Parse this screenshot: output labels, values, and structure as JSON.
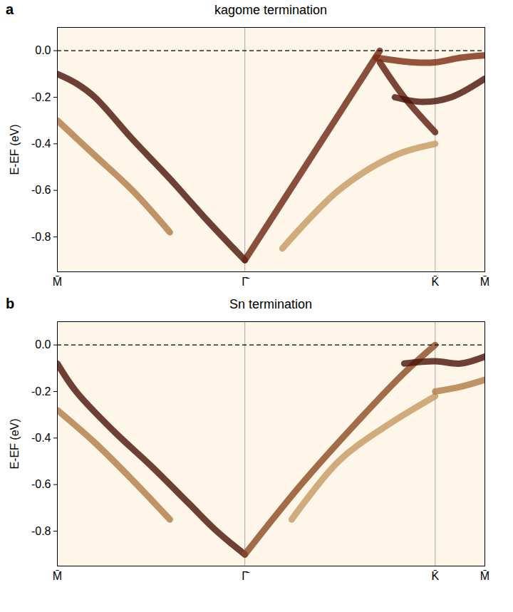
{
  "chart_data": [
    {
      "panel": "a",
      "type": "line",
      "title": "kagome termination",
      "y_label": "E-EF (eV)",
      "xlim": [
        0,
        2.28
      ],
      "xticks": [
        {
          "value": 0,
          "label": "M̄"
        },
        {
          "value": 1,
          "label": "Γ̄"
        },
        {
          "value": 2.015,
          "label": "K̄"
        },
        {
          "value": 2.28,
          "label": "M̄"
        }
      ],
      "ylim": [
        -0.95,
        0.1
      ],
      "yticks": [
        {
          "value": 0,
          "label": "0.0"
        },
        {
          "value": -0.2,
          "label": "-0.2"
        },
        {
          "value": -0.4,
          "label": "-0.4"
        },
        {
          "value": -0.6,
          "label": "-0.6"
        },
        {
          "value": -0.8,
          "label": "-0.8"
        }
      ],
      "grid": "x",
      "hline": {
        "value": 0,
        "line_style": "dashed"
      },
      "series": [
        {
          "color": "#4a1208",
          "x": [
            0,
            0.1,
            0.2,
            0.4,
            0.6,
            0.8,
            1.0
          ],
          "values": [
            -0.1,
            -0.14,
            -0.2,
            -0.38,
            -0.55,
            -0.73,
            -0.9
          ]
        },
        {
          "color": "#b07a45",
          "x": [
            0,
            0.2,
            0.4,
            0.6
          ],
          "values": [
            -0.3,
            -0.45,
            -0.6,
            -0.78
          ]
        },
        {
          "color": "#6b2410",
          "x": [
            1.0,
            1.2,
            1.4,
            1.6,
            1.72
          ],
          "values": [
            -0.9,
            -0.65,
            -0.4,
            -0.15,
            0.0
          ]
        },
        {
          "color": "#5a1a0a",
          "x": [
            1.72,
            1.85,
            2.015
          ],
          "values": [
            -0.05,
            -0.2,
            -0.35
          ]
        },
        {
          "color": "#7a2a10",
          "x": [
            1.7,
            1.9,
            2.015,
            2.15,
            2.28
          ],
          "values": [
            -0.03,
            -0.05,
            -0.05,
            -0.03,
            -0.02
          ]
        },
        {
          "color": "#4a1208",
          "x": [
            1.8,
            1.95,
            2.1,
            2.28
          ],
          "values": [
            -0.2,
            -0.22,
            -0.2,
            -0.12
          ]
        },
        {
          "color": "#c49a60",
          "x": [
            1.2,
            1.5,
            1.8,
            2.015
          ],
          "values": [
            -0.85,
            -0.6,
            -0.45,
            -0.4
          ]
        }
      ]
    },
    {
      "panel": "b",
      "type": "line",
      "title": "Sn termination",
      "y_label": "E-EF (eV)",
      "xlim": [
        0,
        2.28
      ],
      "xticks": [
        {
          "value": 0,
          "label": "M̄"
        },
        {
          "value": 1,
          "label": "Γ̄"
        },
        {
          "value": 2.015,
          "label": "K̄"
        },
        {
          "value": 2.28,
          "label": "M̄"
        }
      ],
      "ylim": [
        -0.95,
        0.1
      ],
      "yticks": [
        {
          "value": 0,
          "label": "0.0"
        },
        {
          "value": -0.2,
          "label": "-0.2"
        },
        {
          "value": -0.4,
          "label": "-0.4"
        },
        {
          "value": -0.6,
          "label": "-0.6"
        },
        {
          "value": -0.8,
          "label": "-0.8"
        }
      ],
      "grid": "x",
      "hline": {
        "value": 0,
        "line_style": "dashed"
      },
      "series": [
        {
          "color": "#4a1208",
          "x": [
            0,
            0.1,
            0.3,
            0.5,
            0.7,
            0.85,
            1.0
          ],
          "values": [
            -0.08,
            -0.2,
            -0.37,
            -0.52,
            -0.68,
            -0.8,
            -0.9
          ]
        },
        {
          "color": "#b07a45",
          "x": [
            0,
            0.2,
            0.4,
            0.6
          ],
          "values": [
            -0.28,
            -0.42,
            -0.58,
            -0.75
          ]
        },
        {
          "color": "#8b4a20",
          "x": [
            1.0,
            1.3,
            1.6,
            1.85,
            2.015
          ],
          "values": [
            -0.9,
            -0.6,
            -0.33,
            -0.12,
            0.0
          ]
        },
        {
          "color": "#c49a60",
          "x": [
            1.25,
            1.5,
            1.75,
            2.015
          ],
          "values": [
            -0.75,
            -0.5,
            -0.35,
            -0.22
          ]
        },
        {
          "color": "#4a1208",
          "x": [
            1.85,
            2.015,
            2.15,
            2.28
          ],
          "values": [
            -0.08,
            -0.07,
            -0.08,
            -0.05
          ]
        },
        {
          "color": "#b07a45",
          "x": [
            2.015,
            2.15,
            2.28
          ],
          "values": [
            -0.2,
            -0.18,
            -0.15
          ]
        }
      ]
    }
  ]
}
